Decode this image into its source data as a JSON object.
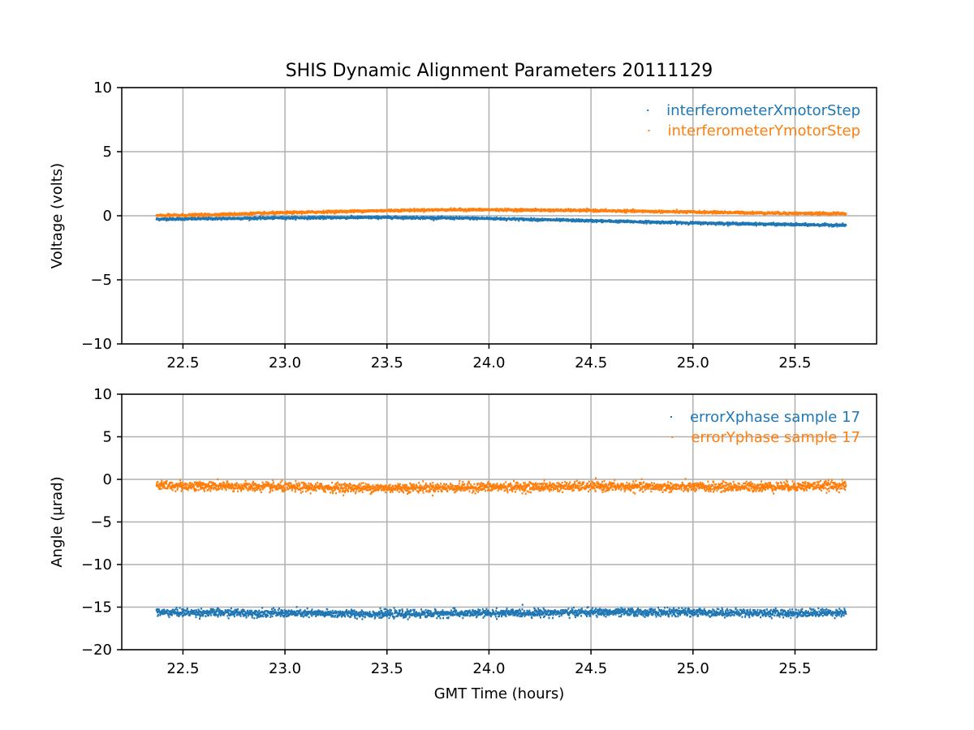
{
  "chart_data": {
    "title": "SHIS Dynamic Alignment Parameters 20111129",
    "panels": [
      {
        "type": "scatter",
        "ylabel": "Voltage (volts)",
        "xlabel": "",
        "xlim": [
          22.2,
          25.9
        ],
        "ylim": [
          -10,
          10
        ],
        "xticks": [
          22.5,
          23.0,
          23.5,
          24.0,
          24.5,
          25.0,
          25.5
        ],
        "xtick_labels": [
          "22.5",
          "23.0",
          "23.5",
          "24.0",
          "24.5",
          "25.0",
          "25.5"
        ],
        "yticks": [
          -10,
          -5,
          0,
          5,
          10
        ],
        "ytick_labels": [
          "−10",
          "−5",
          "0",
          "5",
          "10"
        ],
        "grid": true,
        "legend_position": "top-right",
        "series": [
          {
            "name": "interferometerXmotorStep",
            "color": "#1f77b4",
            "x": [
              22.37,
              22.6,
              23.0,
              23.5,
              24.0,
              24.5,
              25.0,
              25.5,
              25.75
            ],
            "y": [
              -0.25,
              -0.22,
              -0.15,
              -0.12,
              -0.2,
              -0.38,
              -0.55,
              -0.68,
              -0.72
            ],
            "spread": 0.1
          },
          {
            "name": "interferometerYmotorStep",
            "color": "#ff7f0e",
            "x": [
              22.37,
              22.6,
              23.0,
              23.5,
              23.8,
              24.0,
              24.5,
              25.0,
              25.5,
              25.75
            ],
            "y": [
              0.02,
              0.08,
              0.25,
              0.42,
              0.48,
              0.48,
              0.42,
              0.3,
              0.2,
              0.18
            ],
            "spread": 0.1
          }
        ]
      },
      {
        "type": "scatter",
        "ylabel": "Angle (μrad)",
        "xlabel": "GMT Time (hours)",
        "xlim": [
          22.2,
          25.9
        ],
        "ylim": [
          -20,
          10
        ],
        "xticks": [
          22.5,
          23.0,
          23.5,
          24.0,
          24.5,
          25.0,
          25.5
        ],
        "xtick_labels": [
          "22.5",
          "23.0",
          "23.5",
          "24.0",
          "24.5",
          "25.0",
          "25.5"
        ],
        "yticks": [
          -20,
          -15,
          -10,
          -5,
          0,
          5,
          10
        ],
        "ytick_labels": [
          "−20",
          "−15",
          "−10",
          "−5",
          "0",
          "5",
          "10"
        ],
        "grid": true,
        "legend_position": "top-right",
        "series": [
          {
            "name": "errorXphase sample 17",
            "color": "#1f77b4",
            "x": [
              22.37,
              23.0,
              23.5,
              24.0,
              24.5,
              25.0,
              25.5,
              25.75
            ],
            "y": [
              -15.6,
              -15.7,
              -15.8,
              -15.7,
              -15.6,
              -15.6,
              -15.7,
              -15.6
            ],
            "spread": 0.5
          },
          {
            "name": "errorYphase sample 17",
            "color": "#ff7f0e",
            "x": [
              22.37,
              23.0,
              23.5,
              24.0,
              24.5,
              25.0,
              25.5,
              25.75
            ],
            "y": [
              -0.7,
              -0.9,
              -1.0,
              -0.9,
              -0.8,
              -0.9,
              -0.8,
              -0.7
            ],
            "spread": 0.6
          }
        ]
      }
    ]
  }
}
